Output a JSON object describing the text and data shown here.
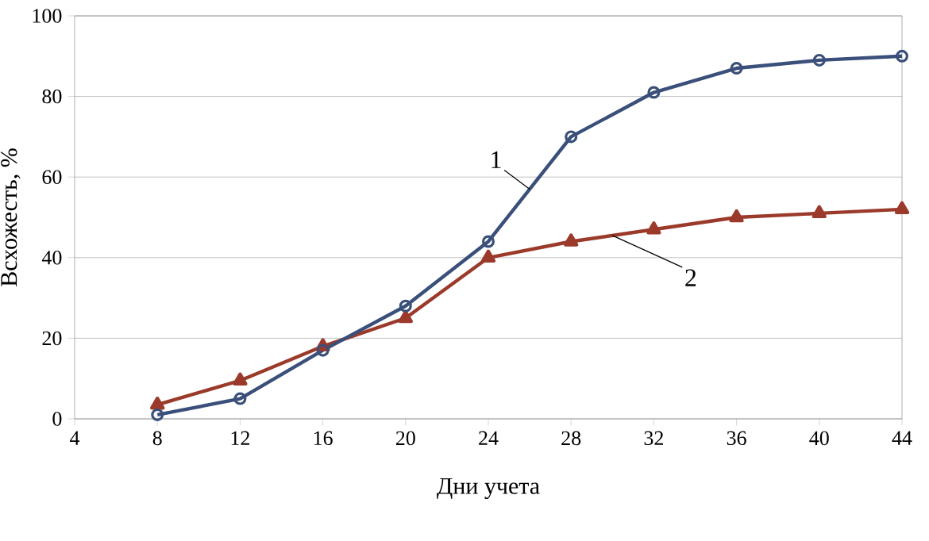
{
  "chart_data": {
    "type": "line",
    "xlabel": "Дни учета",
    "ylabel": "Всхожесть, %",
    "xlim": [
      4,
      44
    ],
    "xticks": [
      4,
      8,
      12,
      16,
      20,
      24,
      28,
      32,
      36,
      40,
      44
    ],
    "ylim": [
      0,
      100
    ],
    "yticks": [
      0,
      20,
      40,
      60,
      80,
      100
    ],
    "grid": "y",
    "series": [
      {
        "name": "1",
        "color": "#3a4f7a",
        "marker": "circle",
        "x": [
          8,
          12,
          16,
          20,
          24,
          28,
          32,
          36,
          40,
          44
        ],
        "values": [
          1,
          5,
          17,
          28,
          44,
          70,
          81,
          87,
          89,
          90
        ]
      },
      {
        "name": "2",
        "color": "#9b3a2a",
        "marker": "triangle",
        "x": [
          8,
          12,
          16,
          20,
          24,
          28,
          32,
          36,
          40,
          44
        ],
        "values": [
          3.5,
          9.5,
          18,
          25,
          40,
          44,
          47,
          50,
          51,
          52
        ]
      }
    ]
  }
}
